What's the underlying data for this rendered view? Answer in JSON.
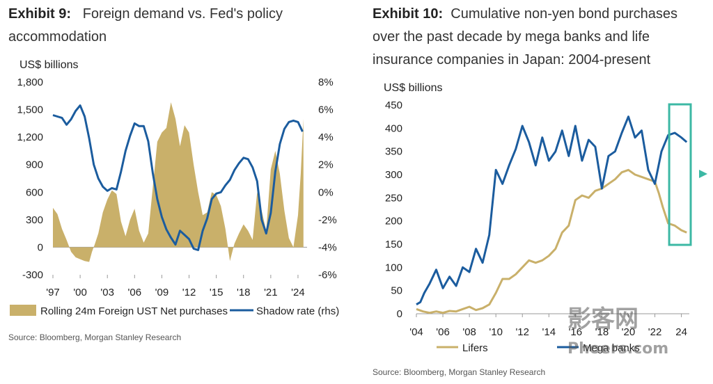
{
  "chart_data": [
    {
      "type": "area",
      "exhibit_label": "Exhibit 9:",
      "title": "Foreign demand vs. Fed's policy accommodation",
      "ylabel": "US$ billions",
      "ylim": [
        -300,
        1800
      ],
      "yticks": [
        "1,800",
        "1,500",
        "1,200",
        "900",
        "600",
        "300",
        "0",
        "-300"
      ],
      "ylim_right": [
        -6,
        8
      ],
      "yticks_right": [
        "8%",
        "6%",
        "4%",
        "2%",
        "0%",
        "-2%",
        "-4%",
        "-6%"
      ],
      "xlim": [
        1997,
        2025
      ],
      "xticks": [
        {
          "value": 1997,
          "label": "'97"
        },
        {
          "value": 2000,
          "label": "'00"
        },
        {
          "value": 2003,
          "label": "'03"
        },
        {
          "value": 2006,
          "label": "'06"
        },
        {
          "value": 2009,
          "label": "'09"
        },
        {
          "value": 2012,
          "label": "'12"
        },
        {
          "value": 2015,
          "label": "'15"
        },
        {
          "value": 2018,
          "label": "'18"
        },
        {
          "value": 2021,
          "label": "'21"
        },
        {
          "value": 2024,
          "label": "'24"
        }
      ],
      "series": [
        {
          "name": "Rolling 24m Foreign UST Net purchases",
          "axis": "left",
          "kind": "area",
          "color": "#C9B06A",
          "x": [
            1997,
            1997.5,
            1998,
            1998.5,
            1999,
            1999.5,
            2000,
            2000.5,
            2001,
            2001.3,
            2001.6,
            2002,
            2002.5,
            2003,
            2003.5,
            2004,
            2004.5,
            2005,
            2005.5,
            2006,
            2006.5,
            2007,
            2007.5,
            2008,
            2008.5,
            2009,
            2009.5,
            2010,
            2010.5,
            2011,
            2011.5,
            2012,
            2012.5,
            2013,
            2013.5,
            2014,
            2014.5,
            2015,
            2015.5,
            2016,
            2016.5,
            2017,
            2017.5,
            2018,
            2018.5,
            2019,
            2019.5,
            2020,
            2020.5,
            2021,
            2021.5,
            2022,
            2022.5,
            2023,
            2023.5,
            2024,
            2024.3,
            2024.6
          ],
          "values": [
            430,
            360,
            200,
            80,
            -50,
            -110,
            -130,
            -150,
            -160,
            -50,
            30,
            150,
            380,
            520,
            620,
            580,
            280,
            120,
            300,
            420,
            180,
            50,
            150,
            650,
            1150,
            1250,
            1300,
            1580,
            1400,
            1100,
            1330,
            1250,
            900,
            600,
            350,
            380,
            600,
            570,
            450,
            200,
            -150,
            40,
            150,
            250,
            180,
            80,
            600,
            400,
            180,
            850,
            1050,
            800,
            400,
            100,
            0,
            350,
            800,
            1400
          ]
        },
        {
          "name": "Shadow rate (rhs)",
          "axis": "right",
          "kind": "line",
          "color": "#1B5C9E",
          "x": [
            1997,
            1997.5,
            1998,
            1998.5,
            1999,
            1999.5,
            2000,
            2000.5,
            2001,
            2001.5,
            2002,
            2002.5,
            2003,
            2003.5,
            2004,
            2004.5,
            2005,
            2005.5,
            2006,
            2006.5,
            2007,
            2007.5,
            2008,
            2008.5,
            2009,
            2009.5,
            2010,
            2010.5,
            2011,
            2011.5,
            2012,
            2012.5,
            2013,
            2013.5,
            2014,
            2014.5,
            2015,
            2015.5,
            2016,
            2016.5,
            2017,
            2017.5,
            2018,
            2018.5,
            2019,
            2019.5,
            2020,
            2020.5,
            2021,
            2021.5,
            2022,
            2022.5,
            2023,
            2023.5,
            2024,
            2024.5
          ],
          "values": [
            5.6,
            5.5,
            5.4,
            4.9,
            5.3,
            5.9,
            6.3,
            5.5,
            3.9,
            2.0,
            1.0,
            0.4,
            0.1,
            0.3,
            0.2,
            1.5,
            3.0,
            4.1,
            5.0,
            4.8,
            4.8,
            3.7,
            1.4,
            -0.5,
            -1.8,
            -2.7,
            -3.3,
            -3.8,
            -2.8,
            -3.1,
            -3.4,
            -4.1,
            -4.2,
            -2.8,
            -1.9,
            -0.5,
            -0.1,
            0.0,
            0.5,
            0.9,
            1.6,
            2.1,
            2.5,
            2.4,
            1.8,
            0.8,
            -2.0,
            -3.0,
            -1.5,
            1.5,
            3.5,
            4.6,
            5.1,
            5.2,
            5.1,
            4.4
          ]
        }
      ]
    },
    {
      "type": "line",
      "exhibit_label": "Exhibit 10:",
      "title": "Cumulative non-yen bond purchases over the past decade by mega banks and life insurance companies in Japan: 2004-present",
      "ylabel": "US$ billions",
      "ylim": [
        0,
        450
      ],
      "yticks": [
        "450",
        "400",
        "350",
        "300",
        "250",
        "200",
        "150",
        "100",
        "50",
        "0"
      ],
      "xlim": [
        2004,
        2024.6
      ],
      "xticks": [
        {
          "value": 2004,
          "label": "'04"
        },
        {
          "value": 2006,
          "label": "'06"
        },
        {
          "value": 2008,
          "label": "'08"
        },
        {
          "value": 2010,
          "label": "'10"
        },
        {
          "value": 2012,
          "label": "'12"
        },
        {
          "value": 2014,
          "label": "'14"
        },
        {
          "value": 2016,
          "label": "'16"
        },
        {
          "value": 2018,
          "label": "'18"
        },
        {
          "value": 2020,
          "label": "'20"
        },
        {
          "value": 2022,
          "label": "'22"
        },
        {
          "value": 2024,
          "label": "24"
        }
      ],
      "series": [
        {
          "name": "Lifers",
          "color": "#C9B06A",
          "x": [
            2004,
            2004.5,
            2005,
            2005.5,
            2006,
            2006.5,
            2007,
            2007.5,
            2008,
            2008.5,
            2009,
            2009.5,
            2010,
            2010.5,
            2011,
            2011.5,
            2012,
            2012.5,
            2013,
            2013.5,
            2014,
            2014.5,
            2015,
            2015.5,
            2016,
            2016.5,
            2017,
            2017.5,
            2018,
            2018.5,
            2019,
            2019.5,
            2020,
            2020.5,
            2021,
            2021.5,
            2022,
            2022.3,
            2022.6,
            2023,
            2023.5,
            2024,
            2024.4
          ],
          "values": [
            10,
            5,
            2,
            5,
            2,
            6,
            5,
            10,
            15,
            8,
            12,
            20,
            45,
            75,
            75,
            85,
            100,
            115,
            110,
            115,
            125,
            140,
            175,
            190,
            245,
            255,
            250,
            265,
            270,
            280,
            290,
            305,
            310,
            300,
            295,
            290,
            285,
            260,
            230,
            195,
            190,
            180,
            175
          ]
        },
        {
          "name": "Mega banks",
          "color": "#1B5C9E",
          "x": [
            2004,
            2004.3,
            2004.6,
            2005,
            2005.5,
            2006,
            2006.5,
            2007,
            2007.5,
            2008,
            2008.5,
            2009,
            2009.5,
            2010,
            2010.5,
            2011,
            2011.5,
            2012,
            2012.5,
            2013,
            2013.5,
            2014,
            2014.5,
            2015,
            2015.5,
            2016,
            2016.5,
            2017,
            2017.5,
            2018,
            2018.5,
            2019,
            2019.5,
            2020,
            2020.5,
            2021,
            2021.5,
            2022,
            2022.5,
            2023,
            2023.5,
            2024,
            2024.4
          ],
          "values": [
            20,
            25,
            45,
            65,
            95,
            55,
            80,
            60,
            100,
            90,
            140,
            110,
            170,
            310,
            280,
            320,
            355,
            405,
            370,
            320,
            380,
            330,
            350,
            395,
            340,
            405,
            330,
            375,
            360,
            270,
            340,
            350,
            390,
            425,
            380,
            395,
            310,
            280,
            350,
            385,
            390,
            380,
            370
          ]
        }
      ],
      "annotations": [
        {
          "kind": "highlight-box",
          "color": "#3CB8A4",
          "xrange": [
            2023.5,
            2024.6
          ]
        }
      ]
    }
  ],
  "sources": {
    "left": "Source: Bloomberg, Morgan Stanley Research",
    "right": "Source: Bloomberg, Morgan Stanley Research"
  },
  "watermark": {
    "main": "影客网",
    "sub": "Phoers.com"
  }
}
